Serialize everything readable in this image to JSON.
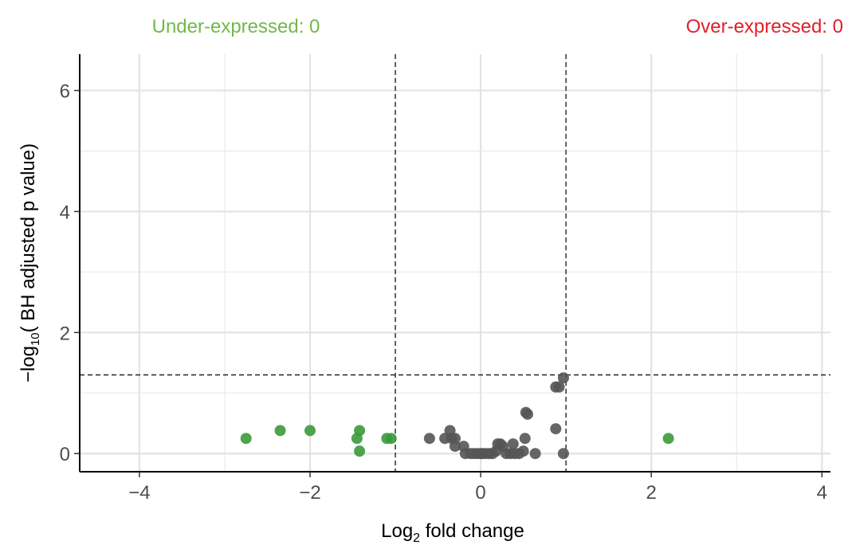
{
  "header": {
    "under_label": "Under-expressed: 0",
    "over_label": "Over-expressed: 0",
    "under_color": "#72b84a",
    "over_color": "#e0202a"
  },
  "axes": {
    "x_label_main": "Log",
    "x_label_sub": "2",
    "x_label_rest": " fold change",
    "y_label_prefix": "−log",
    "y_label_sub": "10",
    "y_label_rest": "( BH adjusted p value)"
  },
  "chart_data": {
    "type": "scatter",
    "title": "",
    "xlabel": "Log2 fold change",
    "ylabel": "−log10( BH adjusted p value)",
    "xlim": [
      -4.7,
      4.1
    ],
    "ylim": [
      -0.3,
      6.6
    ],
    "x_ticks": [
      -4,
      -2,
      0,
      2,
      4
    ],
    "x_tick_labels": [
      "−4",
      "−2",
      "0",
      "2",
      "4"
    ],
    "y_ticks": [
      0,
      2,
      4,
      6
    ],
    "y_tick_labels": [
      "0",
      "2",
      "4",
      "6"
    ],
    "x_minor_grid": [
      -3,
      -1,
      1,
      3
    ],
    "y_minor_grid": [
      1,
      3,
      5
    ],
    "grid": true,
    "thresholds": {
      "fold_change": [
        -1,
        1
      ],
      "neg_log10_p": 1.3
    },
    "series": [
      {
        "name": "",
        "color": "#3a9a3a",
        "points": [
          [
            -2.75,
            0.25
          ],
          [
            -2.35,
            0.38
          ],
          [
            -2.0,
            0.38
          ],
          [
            -1.42,
            0.38
          ],
          [
            -1.45,
            0.25
          ],
          [
            -1.42,
            0.04
          ],
          [
            -1.1,
            0.25
          ],
          [
            -1.05,
            0.25
          ],
          [
            2.2,
            0.25
          ]
        ]
      },
      {
        "name": "",
        "color": "#555555",
        "points": [
          [
            -0.6,
            0.25
          ],
          [
            -0.42,
            0.25
          ],
          [
            -0.36,
            0.38
          ],
          [
            -0.34,
            0.25
          ],
          [
            -0.3,
            0.25
          ],
          [
            -0.3,
            0.12
          ],
          [
            -0.2,
            0.12
          ],
          [
            -0.18,
            0.0
          ],
          [
            -0.12,
            0.0
          ],
          [
            -0.08,
            0.0
          ],
          [
            -0.04,
            0.0
          ],
          [
            0.0,
            0.0
          ],
          [
            0.02,
            0.0
          ],
          [
            0.06,
            0.0
          ],
          [
            0.1,
            0.0
          ],
          [
            0.14,
            0.0
          ],
          [
            0.18,
            0.04
          ],
          [
            0.2,
            0.16
          ],
          [
            0.23,
            0.16
          ],
          [
            0.26,
            0.12
          ],
          [
            0.3,
            0.0
          ],
          [
            0.35,
            0.0
          ],
          [
            0.38,
            0.16
          ],
          [
            0.4,
            0.0
          ],
          [
            0.45,
            0.0
          ],
          [
            0.5,
            0.04
          ],
          [
            0.52,
            0.25
          ],
          [
            0.53,
            0.68
          ],
          [
            0.55,
            0.65
          ],
          [
            0.64,
            0.0
          ],
          [
            0.88,
            0.41
          ],
          [
            0.88,
            1.1
          ],
          [
            0.92,
            1.1
          ],
          [
            0.97,
            1.25
          ],
          [
            0.97,
            0.0
          ]
        ]
      }
    ]
  }
}
